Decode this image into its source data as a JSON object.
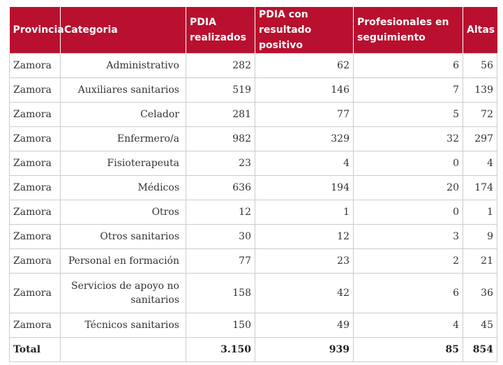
{
  "headers": {
    "provincia": "Provincia",
    "categoria": "Categoria",
    "pdia_realizados": "PDIA realizados",
    "pdia_positivo": "PDIA con resultado positivo",
    "profesionales": "Profesionales en seguimiento",
    "altas": "Altas"
  },
  "rows": [
    {
      "provincia": "Zamora",
      "categoria": "Administrativo",
      "pdia": "282",
      "positivo": "62",
      "profesionales": "6",
      "altas": "56"
    },
    {
      "provincia": "Zamora",
      "categoria": "Auxiliares sanitarios",
      "pdia": "519",
      "positivo": "146",
      "profesionales": "7",
      "altas": "139"
    },
    {
      "provincia": "Zamora",
      "categoria": "Celador",
      "pdia": "281",
      "positivo": "77",
      "profesionales": "5",
      "altas": "72"
    },
    {
      "provincia": "Zamora",
      "categoria": "Enfermero/a",
      "pdia": "982",
      "positivo": "329",
      "profesionales": "32",
      "altas": "297"
    },
    {
      "provincia": "Zamora",
      "categoria": "Fisioterapeuta",
      "pdia": "23",
      "positivo": "4",
      "profesionales": "0",
      "altas": "4"
    },
    {
      "provincia": "Zamora",
      "categoria": "Médicos",
      "pdia": "636",
      "positivo": "194",
      "profesionales": "20",
      "altas": "174"
    },
    {
      "provincia": "Zamora",
      "categoria": "Otros",
      "pdia": "12",
      "positivo": "1",
      "profesionales": "0",
      "altas": "1"
    },
    {
      "provincia": "Zamora",
      "categoria": "Otros sanitarios",
      "pdia": "30",
      "positivo": "12",
      "profesionales": "3",
      "altas": "9"
    },
    {
      "provincia": "Zamora",
      "categoria": "Personal en formación",
      "pdia": "77",
      "positivo": "23",
      "profesionales": "2",
      "altas": "21"
    },
    {
      "provincia": "Zamora",
      "categoria": "Servicios de apoyo no sanitarios",
      "pdia": "158",
      "positivo": "42",
      "profesionales": "6",
      "altas": "36"
    },
    {
      "provincia": "Zamora",
      "categoria": "Técnicos sanitarios",
      "pdia": "150",
      "positivo": "49",
      "profesionales": "4",
      "altas": "45"
    }
  ],
  "total": {
    "label": "Total",
    "pdia": "3.150",
    "positivo": "939",
    "profesionales": "85",
    "altas": "854"
  },
  "colors": {
    "header_bg": "#b8102e",
    "header_text": "#ffffff",
    "border": "#cccccc"
  }
}
